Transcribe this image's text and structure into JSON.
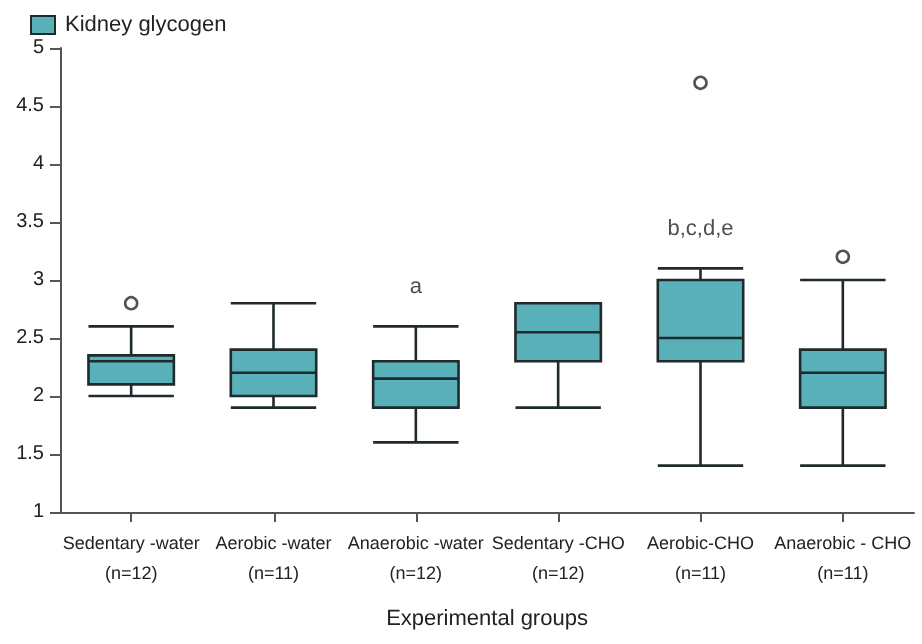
{
  "chart_data": {
    "type": "box",
    "categories": [
      "Sedentary -water\n(n=12)",
      "Aerobic -water\n(n=11)",
      "Anaerobic -water\n(n=12)",
      "Sedentary -CHO\n(n=12)",
      "Aerobic-CHO\n(n=11)",
      "Anaerobic - CHO\n(n=11)"
    ],
    "series": [
      {
        "name": "Kidney glycogen",
        "color": "#5ab0b8",
        "boxes": [
          {
            "low": 2.0,
            "q1": 2.1,
            "median": 2.3,
            "q3": 2.35,
            "high": 2.6,
            "outliers": [
              2.8
            ]
          },
          {
            "low": 1.9,
            "q1": 2.0,
            "median": 2.2,
            "q3": 2.4,
            "high": 2.8
          },
          {
            "low": 1.6,
            "q1": 1.9,
            "median": 2.15,
            "q3": 2.3,
            "high": 2.6
          },
          {
            "low": 1.9,
            "q1": 2.3,
            "median": 2.55,
            "q3": 2.8,
            "high": 2.8
          },
          {
            "low": 1.4,
            "q1": 2.3,
            "median": 2.5,
            "q3": 3.0,
            "high": 3.1,
            "outliers": [
              4.7
            ]
          },
          {
            "low": 1.4,
            "q1": 1.9,
            "median": 2.2,
            "q3": 2.4,
            "high": 3.0,
            "outliers": [
              3.2
            ]
          }
        ]
      }
    ],
    "xlabel": "Experimental groups",
    "ylim": [
      1,
      5
    ],
    "yticks": [
      1,
      1.5,
      2,
      2.5,
      3,
      3.5,
      4,
      4.5,
      5
    ],
    "annotations": [
      {
        "text": "a",
        "x": "Anaerobic -water\n(n=12)",
        "y": 2.6
      },
      {
        "text": "b,c,d,e",
        "x": "Aerobic-CHO\n(n=11)",
        "y": 3.1
      }
    ],
    "grid": false,
    "legend": "top left"
  }
}
